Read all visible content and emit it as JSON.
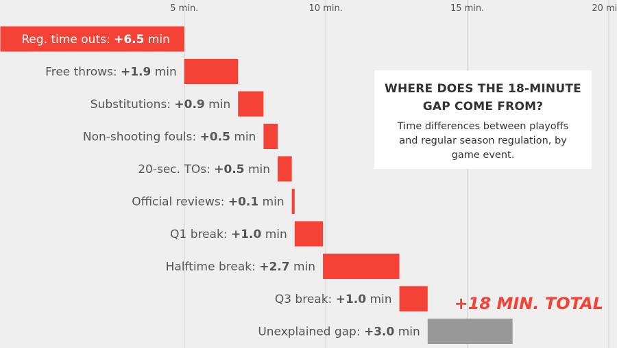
{
  "chart_data": {
    "type": "bar",
    "subtype": "waterfall",
    "orientation": "horizontal",
    "x_ticks": [
      "5 min.",
      "10 min.",
      "15 min.",
      "20 min."
    ],
    "x_tick_values": [
      5,
      10,
      15,
      20
    ],
    "xlim": [
      -1.5,
      20
    ],
    "grid": true,
    "items": [
      {
        "label": "Reg. time outs:",
        "value_text": "+6.5",
        "unit": " min",
        "value": 6.5,
        "color": "#f44336"
      },
      {
        "label": "Free throws:",
        "value_text": "+1.9",
        "unit": " min",
        "value": 1.9,
        "color": "#f44336"
      },
      {
        "label": "Substitutions:",
        "value_text": "+0.9",
        "unit": " min",
        "value": 0.9,
        "color": "#f44336"
      },
      {
        "label": "Non-shooting fouls:",
        "value_text": "+0.5",
        "unit": " min",
        "value": 0.5,
        "color": "#f44336"
      },
      {
        "label": "20-sec. TOs:",
        "value_text": "+0.5",
        "unit": " min",
        "value": 0.5,
        "color": "#f44336"
      },
      {
        "label": "Official reviews:",
        "value_text": "+0.1",
        "unit": " min",
        "value": 0.1,
        "color": "#f44336"
      },
      {
        "label": "Q1 break:",
        "value_text": "+1.0",
        "unit": " min",
        "value": 1.0,
        "color": "#f44336"
      },
      {
        "label": "Halftime break:",
        "value_text": "+2.7",
        "unit": " min",
        "value": 2.7,
        "color": "#f44336"
      },
      {
        "label": "Q3 break:",
        "value_text": "+1.0",
        "unit": " min",
        "value": 1.0,
        "color": "#f44336"
      },
      {
        "label": "Unexplained gap:",
        "value_text": "+3.0",
        "unit": " min",
        "value": 3.0,
        "color": "#999999"
      }
    ],
    "total_annotation": "+18 MIN. TOTAL",
    "title_lines": [
      "WHERE DOES THE 18-MINUTE",
      "GAP COME FROM?"
    ],
    "subtitle_lines": [
      "Time differences between playoffs",
      "and regular season regulation, by",
      "game event."
    ],
    "colors": {
      "accent": "#f44336",
      "unexplained": "#999999",
      "background": "#efefef",
      "grid": "#cccccc"
    }
  }
}
